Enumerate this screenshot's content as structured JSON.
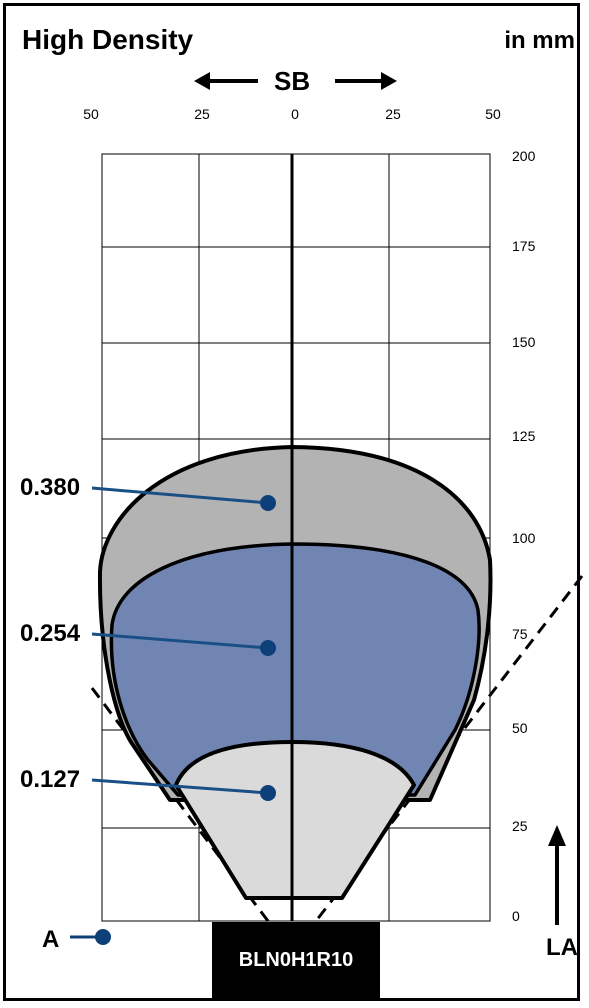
{
  "header": {
    "title": "High Density",
    "unit": "in mm"
  },
  "axis": {
    "sb_label": "SB",
    "la_label": "LA",
    "x_ticks": [
      "50",
      "25",
      "0",
      "25",
      "50"
    ],
    "y_ticks": [
      "200",
      "175",
      "150",
      "125",
      "100",
      "75",
      "50",
      "25",
      "0"
    ]
  },
  "zones": [
    {
      "label": "0.380",
      "color": "#b3b3b3"
    },
    {
      "label": "0.254",
      "color": "#7185b3"
    },
    {
      "label": "0.127",
      "color": "#dadada"
    }
  ],
  "marker_a": "A",
  "model": "BLN0H1R10",
  "colors": {
    "leader": "#1a4f86",
    "dot": "#0d3f78"
  }
}
